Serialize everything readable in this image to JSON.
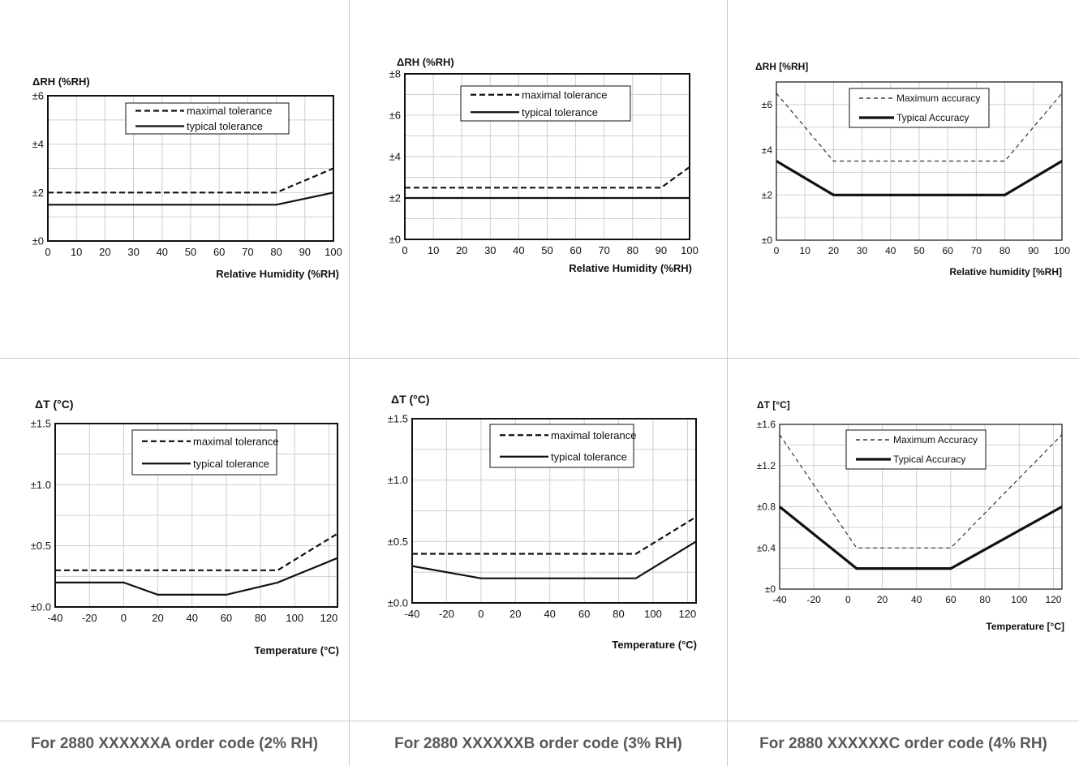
{
  "captions": [
    "For 2880 XXXXXXA order code (2% RH)",
    "For 2880 XXXXXXB order code (3% RH)",
    "For 2880 XXXXXXC order code (4% RH)"
  ],
  "chart_data": [
    {
      "type": "line",
      "ylabel": "ΔRH (%RH)",
      "xlabel": "Relative Humidity (%RH)",
      "xlim": [
        0,
        100
      ],
      "ylim": [
        0,
        6
      ],
      "xticks": [
        0,
        10,
        20,
        30,
        40,
        50,
        60,
        70,
        80,
        90,
        100
      ],
      "xtick_labels": [
        "0",
        "10",
        "20",
        "30",
        "40",
        "50",
        "60",
        "70",
        "80",
        "90",
        "100"
      ],
      "yticks": [
        0,
        2,
        4,
        6
      ],
      "ytick_labels": [
        "±0",
        "±2",
        "±4",
        "±6"
      ],
      "grid": true,
      "legend_position": "top-center",
      "series": [
        {
          "name": "maximal tolerance",
          "style": "dashed",
          "x": [
            0,
            80,
            100
          ],
          "y": [
            2,
            2,
            3
          ]
        },
        {
          "name": "typical tolerance",
          "style": "solid",
          "x": [
            0,
            80,
            100
          ],
          "y": [
            1.5,
            1.5,
            2
          ]
        }
      ]
    },
    {
      "type": "line",
      "ylabel": "ΔRH (%RH)",
      "xlabel": "Relative Humidity (%RH)",
      "xlim": [
        0,
        100
      ],
      "ylim": [
        0,
        8
      ],
      "xticks": [
        0,
        10,
        20,
        30,
        40,
        50,
        60,
        70,
        80,
        90,
        100
      ],
      "xtick_labels": [
        "0",
        "10",
        "20",
        "30",
        "40",
        "50",
        "60",
        "70",
        "80",
        "90",
        "100"
      ],
      "yticks": [
        0,
        2,
        4,
        6,
        8
      ],
      "ytick_labels": [
        "±0",
        "±2",
        "±4",
        "±6",
        "±8"
      ],
      "grid": true,
      "legend_position": "top-center",
      "series": [
        {
          "name": "maximal tolerance",
          "style": "dashed",
          "x": [
            0,
            90,
            100
          ],
          "y": [
            2.5,
            2.5,
            3.5
          ]
        },
        {
          "name": "typical tolerance",
          "style": "solid",
          "x": [
            0,
            100
          ],
          "y": [
            2,
            2
          ]
        }
      ]
    },
    {
      "type": "line",
      "ylabel": "ΔRH [%RH]",
      "xlabel": "Relative humidity [%RH]",
      "xlim": [
        0,
        100
      ],
      "ylim": [
        0,
        7
      ],
      "xticks": [
        0,
        10,
        20,
        30,
        40,
        50,
        60,
        70,
        80,
        90,
        100
      ],
      "xtick_labels": [
        "0",
        "10",
        "20",
        "30",
        "40",
        "50",
        "60",
        "70",
        "80",
        "90",
        "100"
      ],
      "yticks": [
        0,
        2,
        4,
        6
      ],
      "ytick_labels": [
        "±0",
        "±2",
        "±4",
        "±6"
      ],
      "grid": true,
      "legend_position": "top-center",
      "series": [
        {
          "name": "Maximum accuracy",
          "style": "thin-dashed",
          "x": [
            0,
            20,
            80,
            100
          ],
          "y": [
            6.5,
            3.5,
            3.5,
            6.5
          ]
        },
        {
          "name": "Typical Accuracy",
          "style": "thick",
          "x": [
            0,
            20,
            80,
            100
          ],
          "y": [
            3.5,
            2,
            2,
            3.5
          ]
        }
      ]
    },
    {
      "type": "line",
      "ylabel": "ΔT (°C)",
      "xlabel": "Temperature (°C)",
      "xlim": [
        -40,
        125
      ],
      "ylim": [
        0,
        1.5
      ],
      "xticks": [
        -40,
        -20,
        0,
        20,
        40,
        60,
        80,
        100,
        120
      ],
      "xtick_labels": [
        "-40",
        "-20",
        "0",
        "20",
        "40",
        "60",
        "80",
        "100",
        "120"
      ],
      "yticks": [
        0,
        0.5,
        1,
        1.5
      ],
      "ytick_labels": [
        "±0.0",
        "±0.5",
        "±1.0",
        "±1.5"
      ],
      "grid": true,
      "legend_position": "top-right",
      "series": [
        {
          "name": "maximal tolerance",
          "style": "dashed",
          "x": [
            -40,
            90,
            125
          ],
          "y": [
            0.3,
            0.3,
            0.6
          ]
        },
        {
          "name": "typical tolerance",
          "style": "solid",
          "x": [
            -40,
            0,
            20,
            60,
            90,
            125
          ],
          "y": [
            0.2,
            0.2,
            0.1,
            0.1,
            0.2,
            0.4
          ]
        }
      ]
    },
    {
      "type": "line",
      "ylabel": "ΔT (°C)",
      "xlabel": "Temperature (°C)",
      "xlim": [
        -40,
        125
      ],
      "ylim": [
        0,
        1.5
      ],
      "xticks": [
        -40,
        -20,
        0,
        20,
        40,
        60,
        80,
        100,
        120
      ],
      "xtick_labels": [
        "-40",
        "-20",
        "0",
        "20",
        "40",
        "60",
        "80",
        "100",
        "120"
      ],
      "yticks": [
        0,
        0.5,
        1,
        1.5
      ],
      "ytick_labels": [
        "±0.0",
        "±0.5",
        "±1.0",
        "±1.5"
      ],
      "grid": true,
      "legend_position": "top-right",
      "series": [
        {
          "name": "maximal tolerance",
          "style": "dashed",
          "x": [
            -40,
            90,
            125
          ],
          "y": [
            0.4,
            0.4,
            0.7
          ]
        },
        {
          "name": "typical tolerance",
          "style": "solid",
          "x": [
            -40,
            0,
            90,
            125
          ],
          "y": [
            0.3,
            0.2,
            0.2,
            0.5
          ]
        }
      ]
    },
    {
      "type": "line",
      "ylabel": "ΔT [°C]",
      "xlabel": "Temperature [°C]",
      "xlim": [
        -40,
        125
      ],
      "ylim": [
        0,
        1.6
      ],
      "xticks": [
        -40,
        -20,
        0,
        20,
        40,
        60,
        80,
        100,
        120
      ],
      "xtick_labels": [
        "-40",
        "-20",
        "0",
        "20",
        "40",
        "60",
        "80",
        "100",
        "120"
      ],
      "yticks": [
        0,
        0.4,
        0.8,
        1.2,
        1.6
      ],
      "ytick_labels": [
        "±0",
        "±0.4",
        "±0.8",
        "±1.2",
        "±1.6"
      ],
      "grid": true,
      "legend_position": "top-center",
      "series": [
        {
          "name": "Maximum Accuracy",
          "style": "thin-dashed",
          "x": [
            -40,
            5,
            60,
            125
          ],
          "y": [
            1.5,
            0.4,
            0.4,
            1.5
          ]
        },
        {
          "name": "Typical Accuracy",
          "style": "thick",
          "x": [
            -40,
            5,
            60,
            125
          ],
          "y": [
            0.8,
            0.2,
            0.2,
            0.8
          ]
        }
      ]
    }
  ]
}
